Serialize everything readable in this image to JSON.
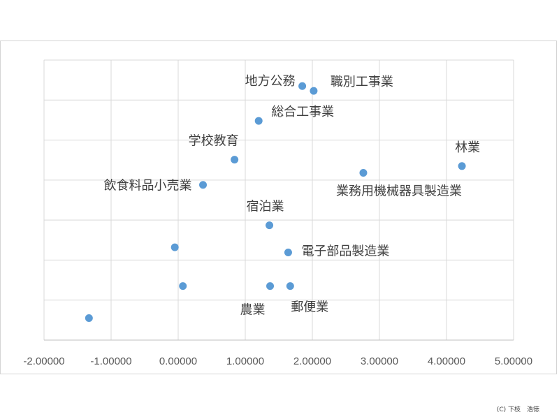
{
  "chart_data": {
    "type": "scatter",
    "xlim": [
      -2,
      5
    ],
    "xticks": [
      -2,
      -1,
      0,
      1,
      2,
      3,
      4,
      5
    ],
    "xtick_labels": [
      "-2.00000",
      "-1.00000",
      "0.00000",
      "1.00000",
      "2.00000",
      "3.00000",
      "4.00000",
      "5.00000"
    ],
    "ylim": [
      -0.5,
      6.5
    ],
    "yticks": [
      -0.5,
      0.5,
      1.5,
      2.5,
      3.5,
      4.5,
      5.5,
      6.5
    ],
    "grid": true,
    "color": "#5b9bd5",
    "points": [
      {
        "x": 1.85,
        "y": 5.85,
        "label": "地方公務"
      },
      {
        "x": 2.02,
        "y": 5.73,
        "label": "職別工事業"
      },
      {
        "x": 1.2,
        "y": 4.98,
        "label": "総合工事業"
      },
      {
        "x": 0.84,
        "y": 4.01,
        "label": "学校教育"
      },
      {
        "x": 4.23,
        "y": 3.85,
        "label": "林業"
      },
      {
        "x": 2.76,
        "y": 3.68,
        "label": "業務用機械器具製造業"
      },
      {
        "x": 0.37,
        "y": 3.38,
        "label": "飲食料品小売業"
      },
      {
        "x": 1.36,
        "y": 2.37,
        "label": "宿泊業"
      },
      {
        "x": -0.05,
        "y": 1.82,
        "label": ""
      },
      {
        "x": 1.64,
        "y": 1.69,
        "label": "電子部品製造業"
      },
      {
        "x": 0.07,
        "y": 0.85,
        "label": ""
      },
      {
        "x": 1.37,
        "y": 0.85,
        "label": "農業"
      },
      {
        "x": 1.67,
        "y": 0.85,
        "label": "郵便業"
      },
      {
        "x": -1.33,
        "y": 0.05,
        "label": ""
      }
    ]
  },
  "credit": "(C) 下枝　浩徳"
}
